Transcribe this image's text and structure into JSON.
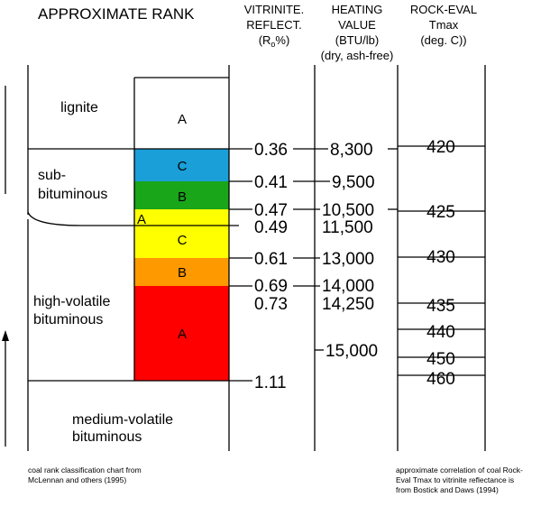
{
  "headers": {
    "rank": "APPROXIMATE RANK",
    "vitrinite": [
      "VITRINITE.",
      "REFLECT."
    ],
    "vitrinite_unit": {
      "open": "(R",
      "sub": "o",
      "close": "%)"
    },
    "heating": [
      "HEATING",
      "VALUE",
      "(BTU/lb)",
      "(dry, ash-free)"
    ],
    "rockeval": [
      "ROCK-EVAL",
      "Tmax",
      "(deg. C))"
    ]
  },
  "ranks": {
    "lignite": "lignite",
    "subbituminous": [
      "sub-",
      "bituminous"
    ],
    "hvb": [
      "high-volatile",
      "bituminous"
    ],
    "mvb": [
      "medium-volatile",
      "bituminous"
    ]
  },
  "subgroups": [
    {
      "label": "A",
      "color": "#ffffff"
    },
    {
      "label": "C",
      "color": "#1a9fd8"
    },
    {
      "label": "B",
      "color": "#19a619"
    },
    {
      "label": "A",
      "color": "#ffff00"
    },
    {
      "label": "C",
      "color": "#ffff00"
    },
    {
      "label": "B",
      "color": "#ff9900"
    },
    {
      "label": "A",
      "color": "#ff0000"
    }
  ],
  "reflectance": [
    "0.36",
    "0.41",
    "0.47",
    "0.49",
    "0.61",
    "0.69",
    "0.73",
    "1.11"
  ],
  "heating_values": [
    "8,300",
    "9,500",
    "10,500",
    "11,500",
    "13,000",
    "14,000",
    "14,250",
    "15,000"
  ],
  "tmax": [
    "420",
    "425",
    "430",
    "435",
    "440",
    "450",
    "460"
  ],
  "notes": {
    "left": [
      "coal rank classification chart from",
      "McLennan and others (1995)"
    ],
    "right": [
      "approximate correlation of coal Rock-",
      "Eval Tmax to vitrinite reflectance is",
      "from Bostick and Daws (1994)"
    ]
  }
}
